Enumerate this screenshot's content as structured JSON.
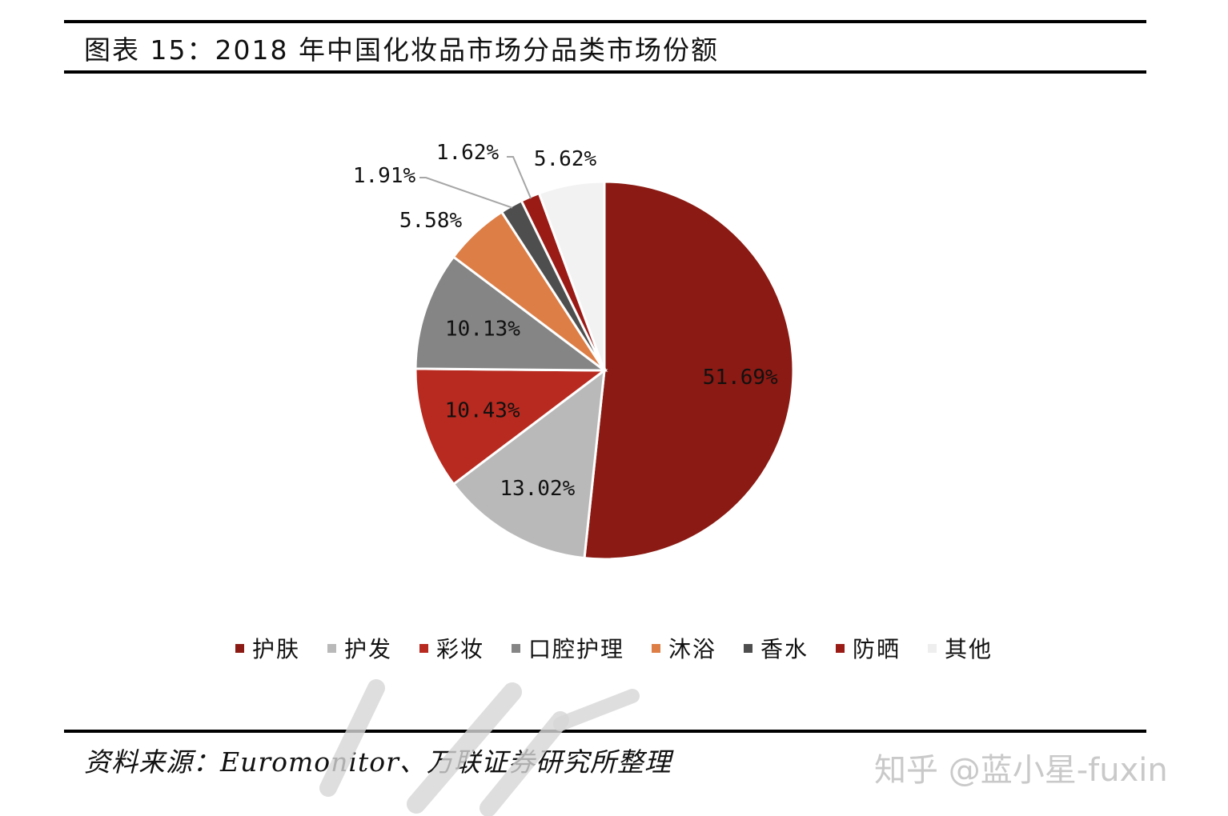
{
  "figure": {
    "title": "图表 15：2018 年中国化妆品市场分品类市场份额",
    "source": "资料来源：Euromonitor、万联证券研究所整理",
    "watermark": "知乎 @蓝小星-fuxin"
  },
  "chart_data": {
    "type": "pie",
    "title": "",
    "unit": "%",
    "legend_position": "bottom",
    "start_angle": "12 o'clock, clockwise",
    "categories": [
      "护肤",
      "护发",
      "彩妆",
      "口腔护理",
      "沐浴",
      "香水",
      "防晒",
      "其他"
    ],
    "values": [
      51.69,
      13.02,
      10.43,
      10.13,
      5.58,
      1.91,
      1.62,
      5.62
    ],
    "labels": [
      "51.69%",
      "13.02%",
      "10.43%",
      "10.13%",
      "5.58%",
      "1.91%",
      "1.62%",
      "5.62%"
    ],
    "colors": [
      "#8a1a13",
      "#b9b9b9",
      "#b82a1f",
      "#858585",
      "#dd7e46",
      "#4e4e4e",
      "#9a1a16",
      "#f2f2f2"
    ]
  }
}
